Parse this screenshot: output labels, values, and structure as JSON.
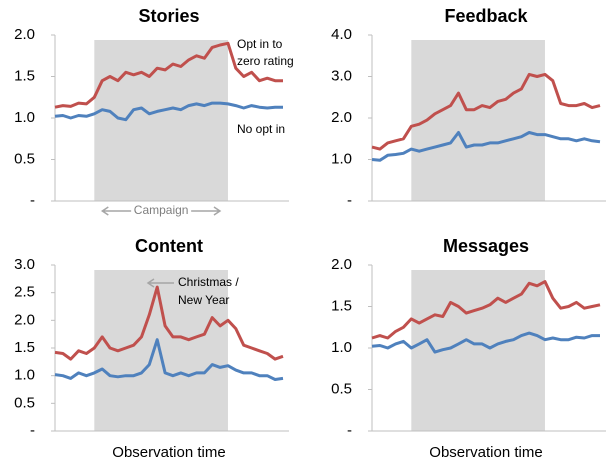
{
  "chart_data": [
    {
      "type": "line",
      "title": "Stories",
      "categories": [
        null,
        null,
        null,
        null,
        null,
        null,
        null,
        null,
        null,
        null,
        null,
        null,
        null,
        null,
        null,
        null,
        null,
        null,
        null,
        null,
        null,
        null,
        null,
        null,
        null,
        null,
        null,
        null,
        null,
        null
      ],
      "series": [
        {
          "name": "Opt in to zero rating",
          "color": "#c0504d",
          "values": [
            1.13,
            1.15,
            1.14,
            1.18,
            1.17,
            1.25,
            1.45,
            1.5,
            1.45,
            1.55,
            1.52,
            1.55,
            1.5,
            1.6,
            1.58,
            1.65,
            1.62,
            1.7,
            1.75,
            1.72,
            1.85,
            1.88,
            1.9,
            1.6,
            1.5,
            1.55,
            1.45,
            1.48,
            1.45,
            1.45
          ]
        },
        {
          "name": "No opt in",
          "color": "#4f81bd",
          "values": [
            1.02,
            1.03,
            1.0,
            1.03,
            1.02,
            1.05,
            1.1,
            1.08,
            1.0,
            0.98,
            1.1,
            1.12,
            1.05,
            1.08,
            1.1,
            1.12,
            1.1,
            1.15,
            1.17,
            1.15,
            1.18,
            1.18,
            1.17,
            1.15,
            1.12,
            1.15,
            1.13,
            1.12,
            1.13,
            1.13
          ]
        }
      ],
      "ylim": [
        0,
        2
      ],
      "yticks": [
        {
          "value": 0,
          "label": "-"
        },
        0.5,
        {
          "value": 1,
          "label": "1.0"
        },
        1.5,
        {
          "value": 2,
          "label": "2.0"
        }
      ],
      "shaded_span": [
        5,
        22
      ],
      "annotations": [
        "Campaign"
      ]
    },
    {
      "type": "line",
      "title": "Feedback",
      "categories": [
        null,
        null,
        null,
        null,
        null,
        null,
        null,
        null,
        null,
        null,
        null,
        null,
        null,
        null,
        null,
        null,
        null,
        null,
        null,
        null,
        null,
        null,
        null,
        null,
        null,
        null,
        null,
        null,
        null,
        null
      ],
      "series": [
        {
          "color": "#c0504d",
          "values": [
            1.3,
            1.25,
            1.4,
            1.45,
            1.5,
            1.8,
            1.85,
            1.95,
            2.1,
            2.2,
            2.3,
            2.6,
            2.2,
            2.2,
            2.3,
            2.25,
            2.4,
            2.45,
            2.6,
            2.7,
            3.05,
            3.0,
            3.05,
            2.9,
            2.35,
            2.3,
            2.3,
            2.35,
            2.25,
            2.3
          ]
        },
        {
          "color": "#4f81bd",
          "values": [
            1.0,
            0.98,
            1.1,
            1.12,
            1.15,
            1.25,
            1.2,
            1.25,
            1.3,
            1.35,
            1.4,
            1.65,
            1.3,
            1.35,
            1.35,
            1.4,
            1.4,
            1.45,
            1.5,
            1.55,
            1.65,
            1.6,
            1.6,
            1.55,
            1.5,
            1.5,
            1.45,
            1.5,
            1.45,
            1.43
          ]
        }
      ],
      "ylim": [
        0,
        4
      ],
      "yticks": [
        {
          "value": 0,
          "label": "-"
        },
        {
          "value": 1,
          "label": "1.0"
        },
        {
          "value": 2,
          "label": "2.0"
        },
        {
          "value": 3,
          "label": "3.0"
        },
        {
          "value": 4,
          "label": "4.0"
        }
      ],
      "shaded_span": [
        5,
        22
      ]
    },
    {
      "type": "line",
      "title": "Content",
      "xlabel": "Observation time",
      "categories": [
        null,
        null,
        null,
        null,
        null,
        null,
        null,
        null,
        null,
        null,
        null,
        null,
        null,
        null,
        null,
        null,
        null,
        null,
        null,
        null,
        null,
        null,
        null,
        null,
        null,
        null,
        null,
        null,
        null,
        null
      ],
      "series": [
        {
          "color": "#c0504d",
          "values": [
            1.42,
            1.4,
            1.3,
            1.45,
            1.4,
            1.5,
            1.7,
            1.5,
            1.45,
            1.5,
            1.55,
            1.7,
            2.1,
            2.6,
            1.9,
            1.7,
            1.7,
            1.65,
            1.7,
            1.75,
            2.05,
            1.9,
            2.0,
            1.85,
            1.55,
            1.5,
            1.45,
            1.4,
            1.3,
            1.35
          ]
        },
        {
          "color": "#4f81bd",
          "values": [
            1.02,
            1.0,
            0.95,
            1.05,
            1.0,
            1.05,
            1.12,
            1.0,
            0.98,
            1.0,
            1.0,
            1.05,
            1.2,
            1.65,
            1.05,
            1.0,
            1.05,
            1.0,
            1.05,
            1.05,
            1.2,
            1.15,
            1.18,
            1.1,
            1.05,
            1.05,
            1.0,
            1.0,
            0.93,
            0.95
          ]
        }
      ],
      "ylim": [
        0,
        3
      ],
      "yticks": [
        {
          "value": 0,
          "label": "-"
        },
        0.5,
        {
          "value": 1,
          "label": "1.0"
        },
        1.5,
        {
          "value": 2,
          "label": "2.0"
        },
        2.5,
        {
          "value": 3,
          "label": "3.0"
        }
      ],
      "shaded_span": [
        5,
        22
      ],
      "annotations": [
        "Christmas / New Year"
      ]
    },
    {
      "type": "line",
      "title": "Messages",
      "xlabel": "Observation time",
      "categories": [
        null,
        null,
        null,
        null,
        null,
        null,
        null,
        null,
        null,
        null,
        null,
        null,
        null,
        null,
        null,
        null,
        null,
        null,
        null,
        null,
        null,
        null,
        null,
        null,
        null,
        null,
        null,
        null,
        null,
        null
      ],
      "series": [
        {
          "color": "#c0504d",
          "values": [
            1.12,
            1.15,
            1.12,
            1.2,
            1.25,
            1.35,
            1.3,
            1.35,
            1.4,
            1.38,
            1.55,
            1.5,
            1.42,
            1.45,
            1.48,
            1.52,
            1.6,
            1.55,
            1.6,
            1.65,
            1.78,
            1.75,
            1.8,
            1.6,
            1.48,
            1.5,
            1.55,
            1.48,
            1.5,
            1.52
          ]
        },
        {
          "color": "#4f81bd",
          "values": [
            1.02,
            1.03,
            1.0,
            1.05,
            1.08,
            1.0,
            1.05,
            1.1,
            0.95,
            0.98,
            1.0,
            1.05,
            1.1,
            1.05,
            1.05,
            1.0,
            1.05,
            1.08,
            1.1,
            1.15,
            1.18,
            1.15,
            1.1,
            1.12,
            1.1,
            1.1,
            1.13,
            1.12,
            1.15,
            1.15
          ]
        }
      ],
      "ylim": [
        0,
        2
      ],
      "yticks": [
        {
          "value": 0,
          "label": "-"
        },
        0.5,
        {
          "value": 1,
          "label": "1.0"
        },
        1.5,
        {
          "value": 2,
          "label": "2.0"
        }
      ],
      "shaded_span": [
        5,
        22
      ]
    }
  ]
}
